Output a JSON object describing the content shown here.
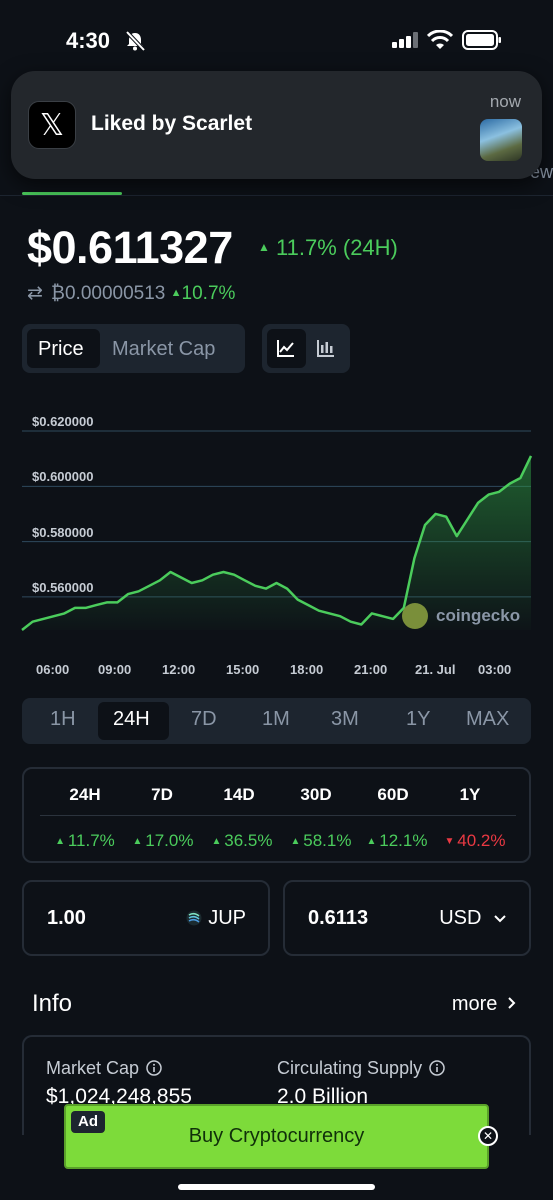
{
  "status": {
    "time": "4:30"
  },
  "notification": {
    "text": "Liked by Scarlet",
    "time": "now",
    "app_icon": "x-logo",
    "app_glyph": "𝕏"
  },
  "coin": {
    "price": "$0.611327",
    "change_24h": "11.7% (24H)",
    "btc_price": "₿0.00000513",
    "btc_change": "10.7%"
  },
  "toggle": {
    "price": "Price",
    "market_cap": "Market Cap"
  },
  "chart_data": {
    "type": "area",
    "y_tick_labels": [
      "$0.620000",
      "$0.600000",
      "$0.580000",
      "$0.560000"
    ],
    "x_tick_labels": [
      "06:00",
      "09:00",
      "12:00",
      "15:00",
      "18:00",
      "21:00",
      "21. Jul",
      "03:00"
    ],
    "ylim": [
      0.548,
      0.624
    ],
    "x": [
      0,
      0.5,
      1,
      1.5,
      2,
      2.5,
      3,
      3.5,
      4,
      4.5,
      5,
      5.5,
      6,
      6.5,
      7,
      7.5,
      8,
      8.5,
      9,
      9.5,
      10,
      10.5,
      11,
      11.5,
      12,
      12.5,
      13,
      13.5,
      14,
      14.5,
      15,
      15.5,
      16,
      16.5,
      17,
      17.5,
      18,
      18.5,
      19,
      19.5,
      20,
      20.5,
      21,
      21.5,
      22,
      22.5,
      23,
      23.5,
      24
    ],
    "values": [
      0.548,
      0.551,
      0.552,
      0.553,
      0.554,
      0.556,
      0.556,
      0.557,
      0.558,
      0.558,
      0.561,
      0.562,
      0.564,
      0.566,
      0.569,
      0.567,
      0.565,
      0.566,
      0.568,
      0.569,
      0.568,
      0.566,
      0.564,
      0.563,
      0.565,
      0.563,
      0.559,
      0.557,
      0.555,
      0.554,
      0.553,
      0.551,
      0.55,
      0.554,
      0.553,
      0.552,
      0.556,
      0.574,
      0.586,
      0.59,
      0.589,
      0.582,
      0.588,
      0.594,
      0.597,
      0.598,
      0.601,
      0.603,
      0.611
    ],
    "grid": true,
    "watermark": "coingecko"
  },
  "ranges": [
    "1H",
    "24H",
    "7D",
    "1M",
    "3M",
    "1Y",
    "MAX"
  ],
  "performance": {
    "headers": [
      "24H",
      "7D",
      "14D",
      "30D",
      "60D",
      "1Y"
    ],
    "values": [
      "11.7%",
      "17.0%",
      "36.5%",
      "58.1%",
      "12.1%",
      "40.2%"
    ],
    "directions": [
      "up",
      "up",
      "up",
      "up",
      "up",
      "down"
    ]
  },
  "converter": {
    "amount": "1.00",
    "symbol": "JUP",
    "fiat_amount": "0.6113",
    "fiat": "USD"
  },
  "info": {
    "title": "Info",
    "more": "more",
    "market_cap_label": "Market Cap",
    "market_cap_value": "$1,024,248,855",
    "supply_label": "Circulating Supply",
    "supply_value": "2.0 Billion"
  },
  "ad": {
    "badge": "Ad",
    "text": "Buy Cryptocurrency"
  },
  "colors": {
    "up": "#4bcc5c",
    "down": "#ea3943",
    "background": "#0d1117",
    "ad": "#7ddb3a"
  }
}
